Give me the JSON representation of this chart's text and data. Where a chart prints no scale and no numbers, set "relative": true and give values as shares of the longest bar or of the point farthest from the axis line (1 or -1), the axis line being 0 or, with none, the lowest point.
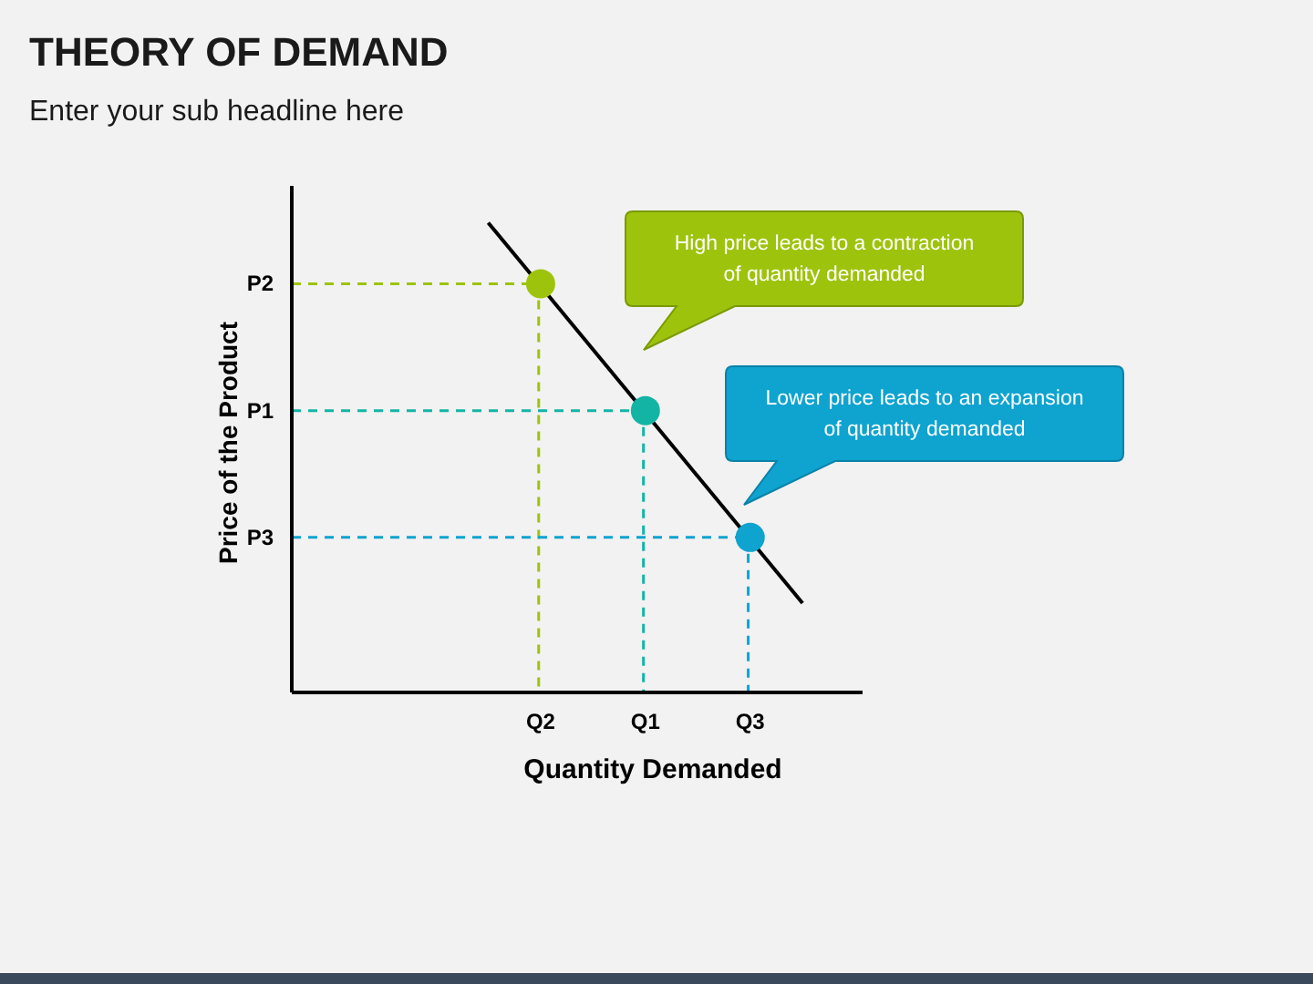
{
  "chart_data": {
    "type": "line",
    "title": "THEORY OF DEMAND",
    "subtitle": "Enter your sub headline here",
    "xlabel": "Quantity Demanded",
    "ylabel": "Price of the Product",
    "relative": true,
    "categories": [
      null,
      null,
      null,
      null,
      null,
      null,
      null,
      null,
      null,
      "Q2",
      null,
      null,
      null,
      "Q1",
      null,
      null,
      null,
      "Q3",
      null,
      null,
      null,
      null
    ],
    "series": [
      {
        "color": "#000000",
        "line_style": "solid",
        "values": [
          null,
          null,
          null,
          null,
          null,
          null,
          null,
          1,
          null,
          null,
          null,
          null,
          null,
          null,
          null,
          null,
          null,
          null,
          null,
          0.19,
          null,
          null
        ]
      },
      {
        "type": "scatter",
        "marker": "circle",
        "x": [
          "Q2",
          "Q1",
          "Q3"
        ],
        "colors": [
          "#9dc30c",
          "#13b4a4",
          "#0fa3cf"
        ],
        "values": [
          0.87,
          0.6,
          0.33
        ]
      }
    ],
    "ref_lines": [
      {
        "axis": "y",
        "value": 0.87,
        "label": "P2",
        "color": "#9dc30c",
        "line_style": "dashed"
      },
      {
        "axis": "y",
        "value": 0.6,
        "label": "P1",
        "color": "#13b4a4",
        "line_style": "dashed"
      },
      {
        "axis": "y",
        "value": 0.33,
        "label": "P3",
        "color": "#0fa3cf",
        "line_style": "dashed"
      }
    ],
    "annotations": [
      "High price leads to a contraction of quantity demanded",
      "Lower price leads to an expansion of quantity demanded"
    ]
  }
}
